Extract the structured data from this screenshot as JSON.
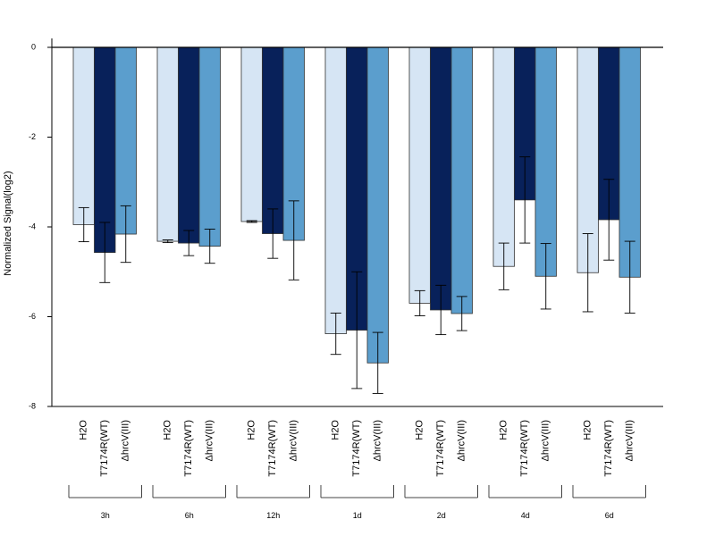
{
  "chart_data": {
    "type": "bar",
    "ylabel": "Normalized Signal(log2)",
    "ylim": [
      -8,
      0.2
    ],
    "yticks": [
      0,
      -2,
      -4,
      -6,
      -8
    ],
    "ytick_labels": [
      "0",
      "-2",
      "-4",
      "-6",
      "-8"
    ],
    "groups": [
      "3h",
      "6h",
      "12h",
      "1d",
      "2d",
      "4d",
      "6d"
    ],
    "group_categories": [
      "H2O",
      "T7174R(WT)",
      "ΔhrcV(III)"
    ],
    "series": [
      {
        "name": "H2O",
        "color": "#d6e5f4",
        "values": [
          -3.95,
          -4.32,
          -3.88,
          -6.38,
          -5.7,
          -4.88,
          -5.02
        ],
        "err": [
          0.38,
          0.03,
          0.02,
          0.46,
          0.28,
          0.52,
          0.87
        ]
      },
      {
        "name": "T7174R(WT)",
        "color": "#08215a",
        "values": [
          -4.57,
          -4.36,
          -4.15,
          -6.3,
          -5.85,
          -3.4,
          -3.84
        ],
        "err": [
          0.67,
          0.28,
          0.55,
          1.3,
          0.55,
          0.96,
          0.9
        ]
      },
      {
        "name": "ΔhrcV(III)",
        "color": "#5b9ecd",
        "values": [
          -4.16,
          -4.43,
          -4.3,
          -7.03,
          -5.93,
          -5.1,
          -5.12
        ],
        "err": [
          0.63,
          0.38,
          0.88,
          0.68,
          0.38,
          0.73,
          0.8
        ]
      }
    ]
  }
}
